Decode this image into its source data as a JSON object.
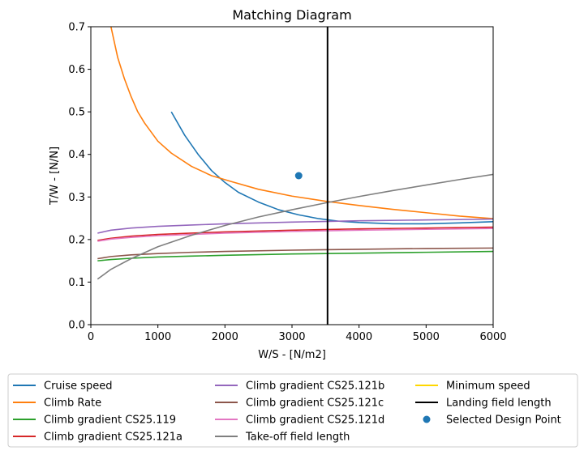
{
  "chart_data": {
    "type": "line",
    "title": "Matching Diagram",
    "xlabel": "W/S - [N/m2]",
    "ylabel": "T/W - [N/N]",
    "xlim": [
      0,
      6000
    ],
    "ylim": [
      0,
      0.7
    ],
    "xticks": [
      "0",
      "1000",
      "2000",
      "3000",
      "4000",
      "5000",
      "6000"
    ],
    "yticks": [
      "0.0",
      "0.1",
      "0.2",
      "0.3",
      "0.4",
      "0.5",
      "0.6",
      "0.7"
    ],
    "grid": false,
    "legend_placement": "below",
    "series": [
      {
        "name": "Cruise speed",
        "color": "#1f77b4",
        "kind": "line",
        "x": [
          1200,
          1400,
          1600,
          1800,
          2000,
          2200,
          2500,
          2800,
          3100,
          3400,
          3700,
          4000,
          4500,
          5000,
          5500,
          6000
        ],
        "y": [
          0.5,
          0.445,
          0.4,
          0.362,
          0.334,
          0.311,
          0.288,
          0.27,
          0.258,
          0.249,
          0.243,
          0.24,
          0.237,
          0.237,
          0.239,
          0.242
        ]
      },
      {
        "name": "Climb Rate",
        "color": "#ff7f0e",
        "kind": "line",
        "x": [
          300,
          400,
          500,
          600,
          700,
          800,
          1000,
          1200,
          1500,
          1800,
          2100,
          2500,
          3000,
          3500,
          4000,
          4500,
          5000,
          5500,
          6000
        ],
        "y": [
          0.7,
          0.628,
          0.578,
          0.536,
          0.5,
          0.474,
          0.431,
          0.403,
          0.372,
          0.35,
          0.336,
          0.318,
          0.302,
          0.29,
          0.28,
          0.271,
          0.263,
          0.255,
          0.249
        ]
      },
      {
        "name": "Climb gradient CS25.119",
        "color": "#2ca02c",
        "kind": "line",
        "x": [
          100,
          300,
          600,
          1000,
          1500,
          2000,
          3000,
          4000,
          5000,
          6000
        ],
        "y": [
          0.15,
          0.153,
          0.156,
          0.159,
          0.161,
          0.163,
          0.166,
          0.168,
          0.17,
          0.172
        ]
      },
      {
        "name": "Climb gradient CS25.121a",
        "color": "#d62728",
        "kind": "line",
        "x": [
          100,
          300,
          600,
          1000,
          1500,
          2000,
          3000,
          4000,
          5000,
          6000
        ],
        "y": [
          0.198,
          0.203,
          0.208,
          0.212,
          0.215,
          0.218,
          0.222,
          0.225,
          0.227,
          0.229
        ]
      },
      {
        "name": "Climb gradient CS25.121b",
        "color": "#9467bd",
        "kind": "line",
        "x": [
          100,
          300,
          600,
          1000,
          1500,
          2000,
          3000,
          4000,
          5000,
          6000
        ],
        "y": [
          0.215,
          0.222,
          0.227,
          0.231,
          0.234,
          0.237,
          0.241,
          0.244,
          0.246,
          0.248
        ]
      },
      {
        "name": "Climb gradient CS25.121c",
        "color": "#8c564b",
        "kind": "line",
        "x": [
          100,
          300,
          600,
          1000,
          1500,
          2000,
          3000,
          4000,
          5000,
          6000
        ],
        "y": [
          0.155,
          0.16,
          0.164,
          0.167,
          0.17,
          0.172,
          0.175,
          0.177,
          0.179,
          0.18
        ]
      },
      {
        "name": "Climb gradient CS25.121d",
        "color": "#e377c2",
        "kind": "line",
        "x": [
          100,
          300,
          600,
          1000,
          1500,
          2000,
          3000,
          4000,
          5000,
          6000
        ],
        "y": [
          0.196,
          0.201,
          0.205,
          0.209,
          0.212,
          0.215,
          0.219,
          0.222,
          0.224,
          0.226
        ]
      },
      {
        "name": "Take-off field length",
        "color": "#7f7f7f",
        "kind": "line",
        "x": [
          100,
          300,
          600,
          1000,
          1500,
          2000,
          2500,
          3000,
          3500,
          4000,
          4500,
          5000,
          5500,
          6000
        ],
        "y": [
          0.107,
          0.13,
          0.155,
          0.183,
          0.21,
          0.233,
          0.253,
          0.27,
          0.286,
          0.301,
          0.315,
          0.328,
          0.341,
          0.353
        ]
      },
      {
        "name": "Minimum speed",
        "color": "#ffd700",
        "kind": "line",
        "x": [],
        "y": []
      },
      {
        "name": "Landing field length",
        "color": "#000000",
        "kind": "vline",
        "x": [
          3530,
          3530
        ],
        "y": [
          0,
          0.7
        ]
      },
      {
        "name": "Selected Design Point",
        "color": "#1f77b4",
        "kind": "point",
        "x": [
          3100
        ],
        "y": [
          0.35
        ]
      }
    ]
  }
}
